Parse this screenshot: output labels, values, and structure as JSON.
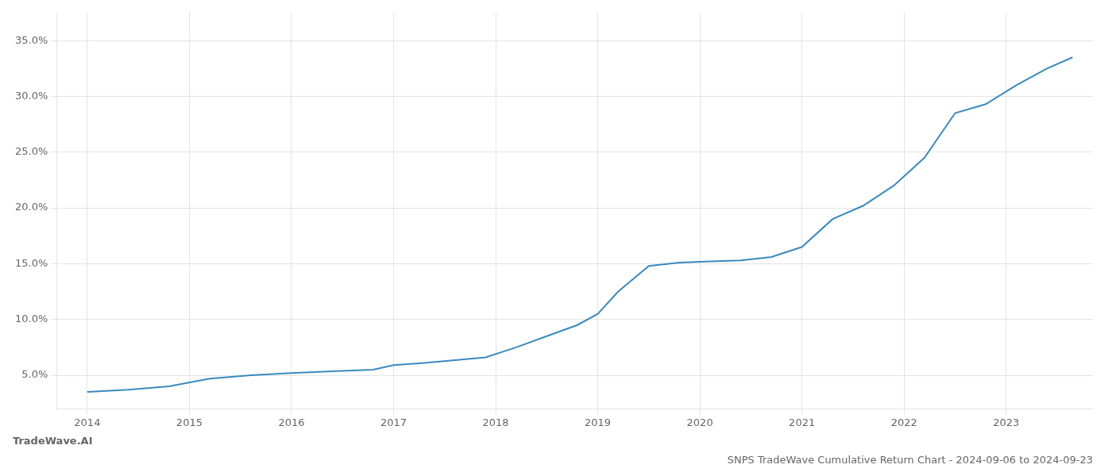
{
  "chart_data": {
    "type": "line",
    "title": "SNPS TradeWave Cumulative Return Chart - 2024-09-06 to 2024-09-23",
    "annotations": [
      "TradeWave.AI"
    ],
    "x": [
      2014.0,
      2014.4,
      2014.8,
      2015.2,
      2015.6,
      2016.0,
      2016.4,
      2016.8,
      2017.0,
      2017.3,
      2017.6,
      2017.9,
      2018.2,
      2018.5,
      2018.8,
      2019.0,
      2019.2,
      2019.5,
      2019.8,
      2020.1,
      2020.4,
      2020.7,
      2021.0,
      2021.3,
      2021.6,
      2021.9,
      2022.2,
      2022.5,
      2022.8,
      2023.1,
      2023.4,
      2023.65
    ],
    "values": [
      3.5,
      3.7,
      4.0,
      4.7,
      5.0,
      5.2,
      5.35,
      5.5,
      5.9,
      6.1,
      6.35,
      6.6,
      7.5,
      8.5,
      9.5,
      10.5,
      12.5,
      14.8,
      15.1,
      15.2,
      15.3,
      15.6,
      16.5,
      19.0,
      20.2,
      22.0,
      24.5,
      28.5,
      29.3,
      31.0,
      32.5,
      33.5
    ],
    "color": "#3a8abf",
    "xlim": [
      2013.7,
      2023.85
    ],
    "ylim": [
      2.0,
      37.5
    ],
    "xticks": [
      2014,
      2015,
      2016,
      2017,
      2018,
      2019,
      2020,
      2021,
      2022,
      2023
    ],
    "yticks": [
      {
        "value": 5.0,
        "label": "5.0%"
      },
      {
        "value": 10.0,
        "label": "10.0%"
      },
      {
        "value": 15.0,
        "label": "15.0%"
      },
      {
        "value": 20.0,
        "label": "20.0%"
      },
      {
        "value": 25.0,
        "label": "25.0%"
      },
      {
        "value": 30.0,
        "label": "30.0%"
      },
      {
        "value": 35.0,
        "label": "35.0%"
      }
    ],
    "grid": true
  }
}
